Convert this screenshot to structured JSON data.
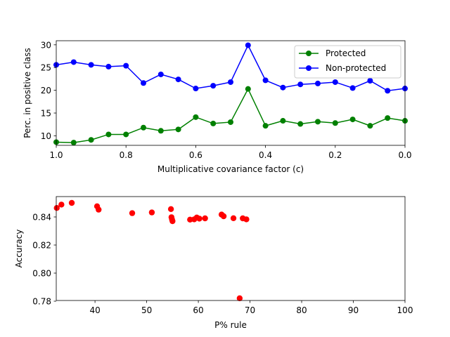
{
  "chart_data": [
    {
      "type": "line",
      "xlabel": "Multiplicative covariance factor (c)",
      "ylabel": "Perc. in positive class",
      "xlim": [
        1.0,
        0.0
      ],
      "ylim": [
        7.9,
        30.9
      ],
      "x_ticks": [
        1.0,
        0.8,
        0.6,
        0.4,
        0.2,
        0.0
      ],
      "x_tick_labels": [
        "1.0",
        "0.8",
        "0.6",
        "0.4",
        "0.2",
        "0.0"
      ],
      "y_ticks": [
        10,
        15,
        20,
        25,
        30
      ],
      "y_tick_labels": [
        "10",
        "15",
        "20",
        "25",
        "30"
      ],
      "legend_position": "top-right",
      "x": [
        1.0,
        0.95,
        0.9,
        0.85,
        0.8,
        0.75,
        0.7,
        0.65,
        0.6,
        0.55,
        0.5,
        0.45,
        0.4,
        0.35,
        0.3,
        0.25,
        0.2,
        0.15,
        0.1,
        0.05,
        0.0
      ],
      "series": [
        {
          "name": "Protected",
          "color": "#008000",
          "marker": "circle",
          "values": [
            8.6,
            8.5,
            9.1,
            10.3,
            10.3,
            11.8,
            11.1,
            11.4,
            14.1,
            12.7,
            13.0,
            20.3,
            12.2,
            13.3,
            12.6,
            13.1,
            12.8,
            13.6,
            12.2,
            13.9,
            13.3
          ]
        },
        {
          "name": "Non-protected",
          "color": "#0000ff",
          "marker": "circle",
          "values": [
            25.6,
            26.2,
            25.6,
            25.2,
            25.4,
            21.6,
            23.5,
            22.4,
            20.4,
            21.0,
            21.8,
            29.9,
            22.2,
            20.6,
            21.3,
            21.5,
            21.8,
            20.5,
            22.1,
            19.9,
            20.4
          ]
        }
      ]
    },
    {
      "type": "scatter",
      "xlabel": "P% rule",
      "ylabel": "Accuracy",
      "xlim": [
        32.5,
        100
      ],
      "ylim": [
        0.7805,
        0.8545
      ],
      "x_ticks": [
        40,
        50,
        60,
        70,
        80,
        90,
        100
      ],
      "x_tick_labels": [
        "40",
        "50",
        "60",
        "70",
        "80",
        "90",
        "100"
      ],
      "y_ticks": [
        0.78,
        0.8,
        0.82,
        0.84
      ],
      "y_tick_labels": [
        "0.78",
        "0.80",
        "0.82",
        "0.84"
      ],
      "series": [
        {
          "color": "#ff0000",
          "marker": "circle",
          "x": [
            32.6,
            33.5,
            35.5,
            40.4,
            40.7,
            47.2,
            51.0,
            54.7,
            54.8,
            54.9,
            55.0,
            58.4,
            59.2,
            59.7,
            60.2,
            61.3,
            64.5,
            64.9,
            66.8,
            68.0,
            68.6,
            69.3
          ],
          "y": [
            0.8464,
            0.8488,
            0.85,
            0.8476,
            0.8452,
            0.8427,
            0.8432,
            0.8456,
            0.8398,
            0.8383,
            0.837,
            0.8381,
            0.8383,
            0.8396,
            0.8388,
            0.839,
            0.8417,
            0.8405,
            0.8391,
            0.7821,
            0.839,
            0.8383
          ]
        }
      ]
    }
  ]
}
